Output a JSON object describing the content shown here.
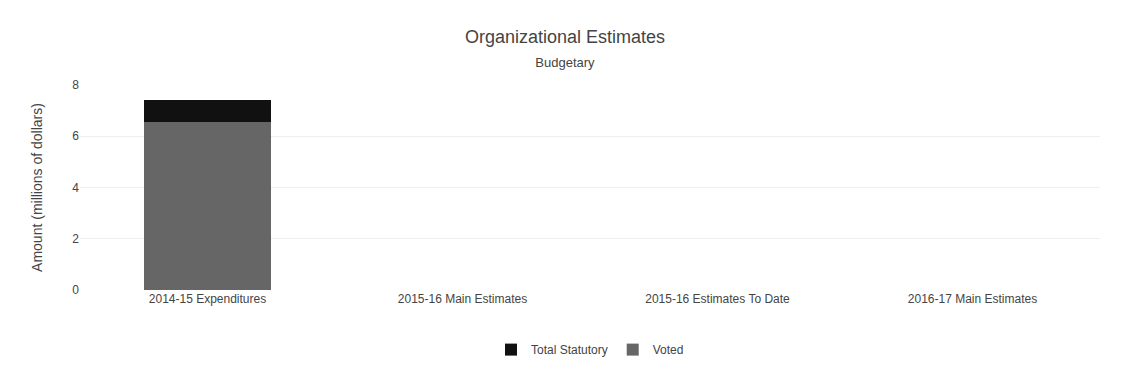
{
  "chart_data": {
    "type": "bar",
    "title": "Organizational Estimates",
    "subtitle": "Budgetary",
    "categories": [
      "2014-15 Expenditures",
      "2015-16 Main Estimates",
      "2015-16 Estimates To Date",
      "2016-17 Main Estimates"
    ],
    "series": [
      {
        "name": "Voted",
        "color": "#666666",
        "values": [
          6.55,
          0.0,
          0.0,
          0.0
        ]
      },
      {
        "name": "Total Statutory",
        "color": "#111111",
        "values": [
          0.85,
          0.0,
          0.0,
          0.0
        ]
      }
    ],
    "stacked": true,
    "ylabel": "Amount (millions of dollars)",
    "ylim": [
      0,
      8
    ],
    "yticks": [
      0,
      2,
      4,
      6,
      8
    ],
    "grid": true,
    "legend": "bottom"
  }
}
